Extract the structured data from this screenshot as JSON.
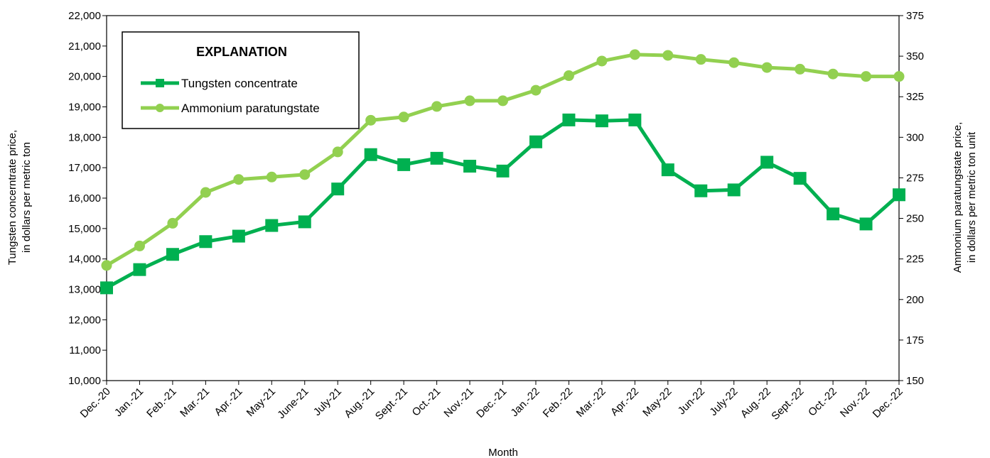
{
  "chart_data": {
    "type": "line",
    "xlabel": "Month",
    "ylabel_left_line1": "Tungsten concerntrate price,",
    "ylabel_left_line2": "in dollars per metric ton",
    "ylabel_right_line1": "Ammonium paratungstate price,",
    "ylabel_right_line2": "in dollars per metric ton unit",
    "legend_title": "EXPLANATION",
    "legend_position": "top-left",
    "grid": false,
    "categories": [
      "Dec.-20",
      "Jan.-21",
      "Feb.-21",
      "Mar.-21",
      "Apr.-21",
      "May-21",
      "June-21",
      "July-21",
      "Aug.-21",
      "Sept.-21",
      "Oct.-21",
      "Nov.-21",
      "Dec.-21",
      "Jan.-22",
      "Feb.-22",
      "Mar.-22",
      "Apr.-22",
      "May-22",
      "Jun-22",
      "July-22",
      "Aug.-22",
      "Sept.-22",
      "Oct.-22",
      "Nov.-22",
      "Dec.-22"
    ],
    "y_left": {
      "lim": [
        10000,
        22000
      ],
      "ticks": [
        10000,
        11000,
        12000,
        13000,
        14000,
        15000,
        16000,
        17000,
        18000,
        19000,
        20000,
        21000,
        22000
      ],
      "tick_labels": [
        "10,000",
        "11,000",
        "12,000",
        "13,000",
        "14,000",
        "15,000",
        "16,000",
        "17,000",
        "18,000",
        "19,000",
        "20,000",
        "21,000",
        "22,000"
      ]
    },
    "y_right": {
      "lim": [
        150,
        375
      ],
      "ticks": [
        150,
        175,
        200,
        225,
        250,
        275,
        300,
        325,
        350,
        375
      ],
      "tick_labels": [
        "150",
        "175",
        "200",
        "225",
        "250",
        "275",
        "300",
        "325",
        "350",
        "375"
      ]
    },
    "series": [
      {
        "name": "Tungsten concentrate",
        "axis": "left",
        "marker": "square",
        "color": "#00b050",
        "values": [
          13050,
          13650,
          14150,
          14570,
          14750,
          15100,
          15220,
          16300,
          17430,
          17100,
          17310,
          17050,
          16890,
          17850,
          18570,
          18540,
          18570,
          16930,
          16240,
          16270,
          17180,
          16650,
          15480,
          15150,
          16110
        ]
      },
      {
        "name": "Ammonium paratungstate",
        "axis": "right",
        "marker": "circle",
        "color": "#92d050",
        "values": [
          221,
          233,
          247,
          266,
          274,
          275.5,
          277,
          291,
          310.5,
          312.5,
          319,
          322.5,
          322.5,
          329,
          338,
          347,
          351,
          350.5,
          348,
          346,
          343,
          342,
          339,
          337.5,
          337.5
        ]
      }
    ]
  }
}
